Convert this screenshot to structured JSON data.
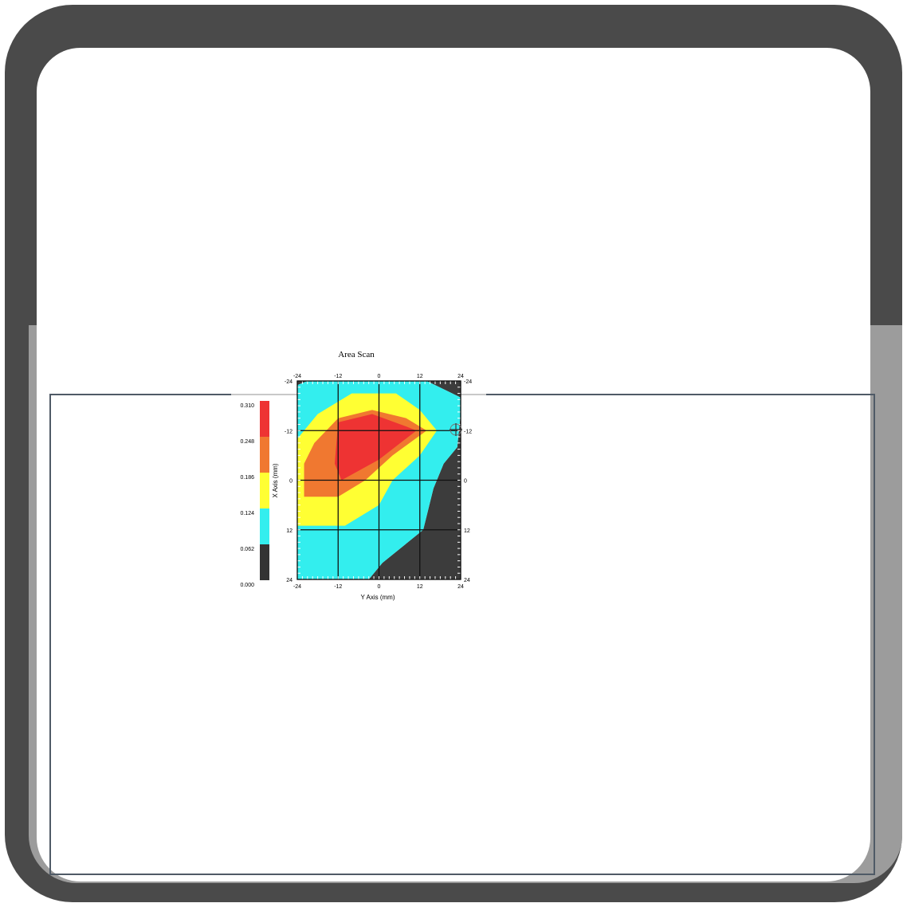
{
  "chart_data": {
    "type": "heatmap",
    "title": "Area Scan",
    "xlabel": "Y Axis (mm)",
    "ylabel": "X Axis (mm)",
    "x_ticks": [
      "-24",
      "-12",
      "0",
      "12",
      "24"
    ],
    "y_ticks": [
      "-24",
      "-12",
      "0",
      "12",
      "24"
    ],
    "xlim": [
      -24,
      24
    ],
    "ylim": [
      -24,
      24
    ],
    "grid": true,
    "colorbar": {
      "labels": [
        "0.310",
        "0.248",
        "0.186",
        "0.124",
        "0.062",
        "0.000"
      ],
      "colors": [
        "#ee3333",
        "#f07830",
        "#ffff33",
        "#33eeee",
        "#333333"
      ]
    },
    "levels": [
      {
        "range": "0.000-0.062",
        "color": "#3c3c3c",
        "points": [
          [
            24,
            -24
          ],
          [
            24,
            -16
          ],
          [
            23,
            -8
          ],
          [
            19,
            -4
          ],
          [
            16,
            2
          ],
          [
            13,
            12
          ],
          [
            1,
            20
          ],
          [
            -3,
            24
          ],
          [
            24,
            24
          ]
        ]
      },
      {
        "range": "0.000-0.062",
        "color": "#3c3c3c",
        "points": [
          [
            14,
            -24
          ],
          [
            24,
            -24
          ],
          [
            24,
            -20
          ]
        ]
      },
      {
        "range": "0.000-0.062",
        "color": "#3c3c3c",
        "points": [
          [
            -24,
            -24
          ],
          [
            -21,
            -24
          ],
          [
            -24,
            -23
          ]
        ]
      },
      {
        "range": "0.062-0.124",
        "color": "#33eeee",
        "points": [
          [
            -24,
            -23
          ],
          [
            -21,
            -24
          ],
          [
            14,
            -24
          ],
          [
            24,
            -20
          ],
          [
            24,
            -16
          ],
          [
            23,
            -8
          ],
          [
            19,
            -4
          ],
          [
            16,
            2
          ],
          [
            13,
            12
          ],
          [
            1,
            20
          ],
          [
            -3,
            24
          ],
          [
            -24,
            24
          ]
        ]
      },
      {
        "range": "0.124-0.186",
        "color": "#ffff33",
        "points": [
          [
            -24,
            -10
          ],
          [
            -18,
            -16
          ],
          [
            -8,
            -21
          ],
          [
            5,
            -21
          ],
          [
            12,
            -17
          ],
          [
            17,
            -12
          ],
          [
            12,
            -6
          ],
          [
            4,
            0
          ],
          [
            0,
            6
          ],
          [
            -10,
            11
          ],
          [
            -24,
            11
          ]
        ]
      },
      {
        "range": "0.186-0.248",
        "color": "#f07830",
        "points": [
          [
            -22,
            -4
          ],
          [
            -19,
            -9
          ],
          [
            -12,
            -15
          ],
          [
            -2,
            -17
          ],
          [
            8,
            -15
          ],
          [
            14,
            -12
          ],
          [
            4,
            -6
          ],
          [
            -4,
            0
          ],
          [
            -12,
            4
          ],
          [
            -22,
            4
          ]
        ]
      },
      {
        "range": "0.248-0.310",
        "color": "#ee3333",
        "points": [
          [
            -12,
            -14
          ],
          [
            -2,
            -16
          ],
          [
            8,
            -13
          ],
          [
            11,
            -12
          ],
          [
            0,
            -5
          ],
          [
            -11,
            0
          ],
          [
            -13,
            -4
          ]
        ]
      }
    ]
  }
}
